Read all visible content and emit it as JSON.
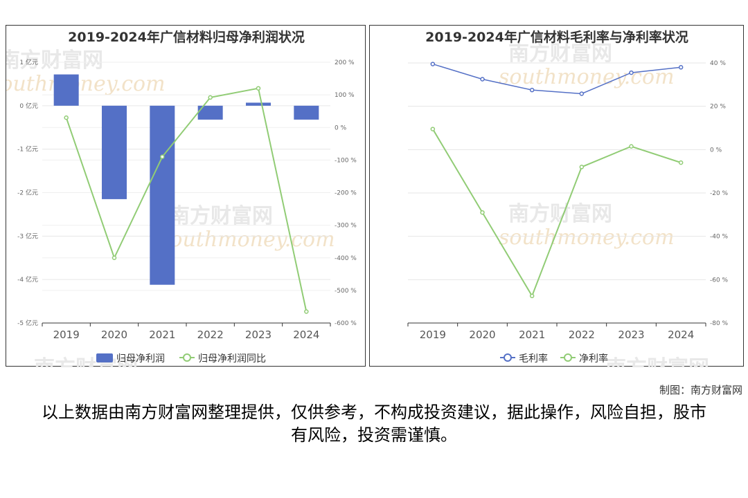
{
  "chart_data": [
    {
      "type": "bar",
      "title": "2019-2024年广信材料归母净利润状况",
      "categories": [
        "2019",
        "2020",
        "2021",
        "2022",
        "2023",
        "2024"
      ],
      "series": [
        {
          "name": "归母净利润",
          "type": "bar",
          "axis": "left",
          "color": "#5470c6",
          "values": [
            0.72,
            -2.15,
            -4.12,
            -0.32,
            0.07,
            -0.32
          ]
        },
        {
          "name": "归母净利润同比",
          "type": "line",
          "axis": "right",
          "color": "#91cc75",
          "values": [
            30,
            -400,
            -90,
            92,
            120,
            -565
          ]
        }
      ],
      "left_axis": {
        "ticks": [
          1,
          0,
          -1,
          -2,
          -3,
          -4,
          -5
        ],
        "tick_labels": [
          "1 亿元",
          "0 亿元",
          "-1 亿元",
          "-2 亿元",
          "-3 亿元",
          "-4 亿元",
          "-5 亿元"
        ],
        "range": [
          -5,
          1
        ]
      },
      "right_axis": {
        "ticks": [
          200,
          100,
          0,
          -100,
          -200,
          -300,
          -400,
          -500,
          -600
        ],
        "tick_labels": [
          "200 %",
          "100 %",
          "0 %",
          "-100 %",
          "-200 %",
          "-300 %",
          "-400 %",
          "-500 %",
          "-600 %"
        ],
        "range": [
          -600,
          200
        ]
      },
      "legend_position": "bottom-center",
      "grid": true
    },
    {
      "type": "line",
      "title": "2019-2024年广信材料毛利率与净利率状况",
      "categories": [
        "2019",
        "2020",
        "2021",
        "2022",
        "2023",
        "2024"
      ],
      "series": [
        {
          "name": "毛利率",
          "color": "#5470c6",
          "values": [
            39.5,
            32.5,
            27.5,
            25.8,
            35.5,
            38
          ]
        },
        {
          "name": "净利率",
          "color": "#91cc75",
          "values": [
            9.5,
            -29,
            -67.5,
            -8,
            1.5,
            -6
          ]
        }
      ],
      "right_axis": {
        "ticks": [
          40,
          20,
          0,
          -20,
          -40,
          -60,
          -80
        ],
        "tick_labels": [
          "40 %",
          "20 %",
          "0 %",
          "-20 %",
          "-40 %",
          "-60 %",
          "-80 %"
        ],
        "range": [
          -80,
          40
        ]
      },
      "legend_position": "bottom-center",
      "grid": true
    }
  ],
  "watermark": {
    "cn": "南方财富网",
    "en": "southmoney.com"
  },
  "footer": {
    "credit": "制图：南方财富网",
    "disclaimer": "以上数据由南方财富网整理提供，仅供参考，不构成投资建议，据此操作，风险自担，股市有风险，投资需谨慎。"
  }
}
